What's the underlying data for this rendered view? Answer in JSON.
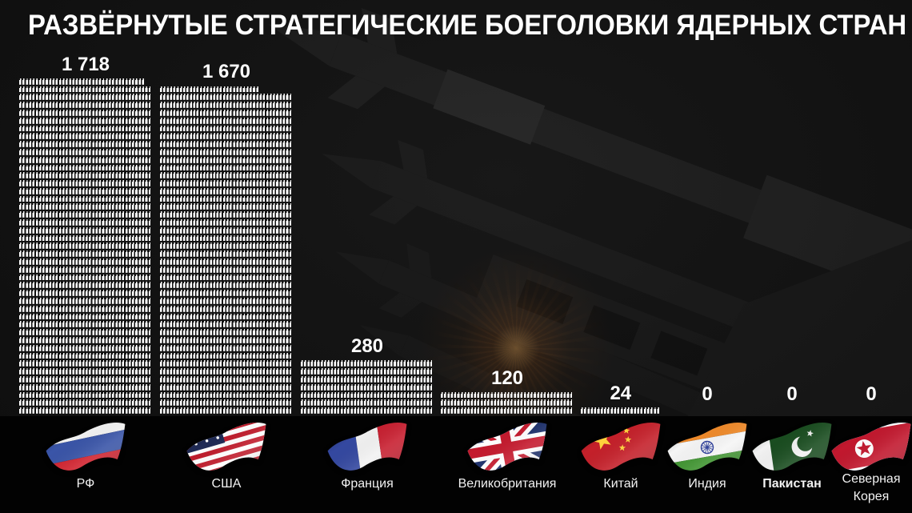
{
  "title": "РАЗВЁРНУТЫЕ СТРАТЕГИЧЕСКИЕ БОЕГОЛОВКИ ЯДЕРНЫХ СТРАН",
  "chart_data": {
    "type": "bar",
    "style": "pictogram",
    "title": "РАЗВЁРНУТЫЕ СТРАТЕГИЧЕСКИЕ БОЕГОЛОВКИ ЯДЕРНЫХ СТРАН",
    "categories": [
      "РФ",
      "США",
      "Франция",
      "Великобритания",
      "Китай",
      "Индия",
      "Пакистан",
      "Северная Корея"
    ],
    "values": [
      1718,
      1670,
      280,
      120,
      24,
      0,
      0,
      0
    ],
    "value_labels": [
      "1 718",
      "1 670",
      "280",
      "120",
      "24",
      "0",
      "0",
      "0"
    ],
    "icon": "warhead-pictogram",
    "icons_per_row": 40,
    "orientation": "vertical",
    "grid": false,
    "legend_position": "none"
  },
  "columns": [
    {
      "label": "РФ",
      "value": 1718,
      "value_label": "1 718",
      "flag": "russia",
      "bold": false
    },
    {
      "label": "США",
      "value": 1670,
      "value_label": "1 670",
      "flag": "usa",
      "bold": false
    },
    {
      "label": "Франция",
      "value": 280,
      "value_label": "280",
      "flag": "france",
      "bold": false
    },
    {
      "label": "Великобритания",
      "value": 120,
      "value_label": "120",
      "flag": "uk",
      "bold": false
    },
    {
      "label": "Китай",
      "value": 24,
      "value_label": "24",
      "flag": "china",
      "bold": false
    },
    {
      "label": "Индия",
      "value": 0,
      "value_label": "0",
      "flag": "india",
      "bold": false
    },
    {
      "label": "Пакистан",
      "value": 0,
      "value_label": "0",
      "flag": "pakistan",
      "bold": true
    },
    {
      "label": "Северная Корея",
      "value": 0,
      "value_label": "0",
      "flag": "north-korea",
      "bold": false
    }
  ],
  "colors": {
    "icon": "#ffffff",
    "text": "#ffffff",
    "background": "#141414",
    "footer": "#020202",
    "glow": "#ff8c28"
  },
  "flag_colors": {
    "russia": [
      "#f2f2f2",
      "#3a55a8",
      "#d2232f"
    ],
    "usa": [
      "#1f2a55",
      "#c01c2c",
      "#ffffff"
    ],
    "france": [
      "#3448a0",
      "#f2f2f2",
      "#c81f30"
    ],
    "uk": [
      "#1c2f6b",
      "#c51a2e",
      "#ffffff"
    ],
    "china": [
      "#c5202a",
      "#ffd33c"
    ],
    "india": [
      "#ef8a2a",
      "#f5f5f5",
      "#3f9430",
      "#2b3d9b"
    ],
    "pakistan": [
      "#1a4d20",
      "#f2f2f2"
    ],
    "north-korea": [
      "#1f3f8f",
      "#c2182e",
      "#ffffff"
    ]
  }
}
